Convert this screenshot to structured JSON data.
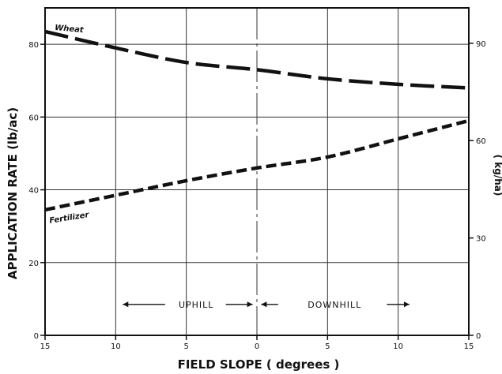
{
  "chart_data": {
    "type": "line",
    "xlabel": "FIELD SLOPE ( degrees )",
    "ylabel": "APPLICATION RATE  (lb/ac)",
    "ylabel_right": "( kg/ha)",
    "x_ticks": [
      -15,
      -10,
      -5,
      0,
      5,
      10,
      15
    ],
    "x_tick_labels": [
      "15",
      "10",
      "5",
      "0",
      "5",
      "10",
      "15"
    ],
    "xlim": [
      -15,
      15
    ],
    "y_ticks": [
      0,
      20,
      40,
      60,
      80
    ],
    "y_tick_labels": [
      "0",
      "20",
      "40",
      "60",
      "80"
    ],
    "ylim": [
      0,
      90
    ],
    "y_right_ticks": [
      0,
      30,
      60,
      90
    ],
    "y_right_tick_labels": [
      "0",
      "30",
      "60",
      "90"
    ],
    "grid": true,
    "region_labels": {
      "uphill": "UPHILL",
      "downhill": "DOWNHILL"
    },
    "series": [
      {
        "name": "Wheat",
        "x": [
          -15,
          -10,
          -5,
          0,
          5,
          10,
          15
        ],
        "y": [
          83.5,
          79,
          75,
          73,
          70.5,
          69,
          68
        ]
      },
      {
        "name": "Fertilizer",
        "x": [
          -15,
          -10,
          -5,
          0,
          5,
          10,
          15
        ],
        "y": [
          34.5,
          38.5,
          42.5,
          46,
          49,
          54,
          59
        ]
      }
    ]
  }
}
